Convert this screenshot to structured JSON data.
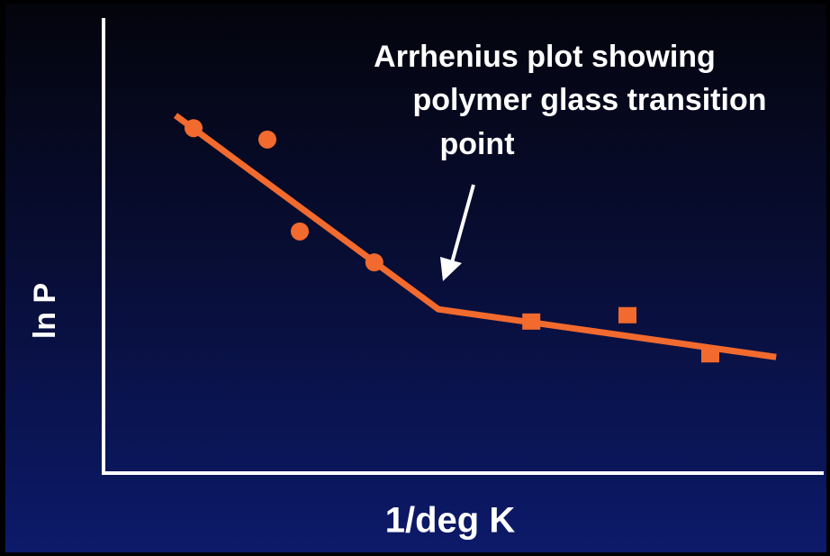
{
  "chart_data": {
    "type": "scatter",
    "annotation": [
      "Arrhenius plot showing",
      "polymer glass transition",
      "point"
    ],
    "xlabel": "1/deg K",
    "ylabel": "ln P",
    "xlim": [
      0,
      100
    ],
    "ylim": [
      0,
      100
    ],
    "color": "#f26a2e",
    "series": [
      {
        "marker": "circle",
        "x": [
          12.5,
          22.75,
          27.25,
          37.6
        ],
        "values": [
          75.8,
          73.3,
          53.1,
          46.3
        ]
      },
      {
        "marker": "square",
        "x": [
          59.4,
          72.75,
          84.25
        ],
        "values": [
          33.3,
          34.7,
          26.1
        ]
      }
    ],
    "fit": {
      "x": [
        10,
        46.5,
        93.4
      ],
      "values": [
        78.6,
        36.0,
        25.5
      ]
    }
  }
}
